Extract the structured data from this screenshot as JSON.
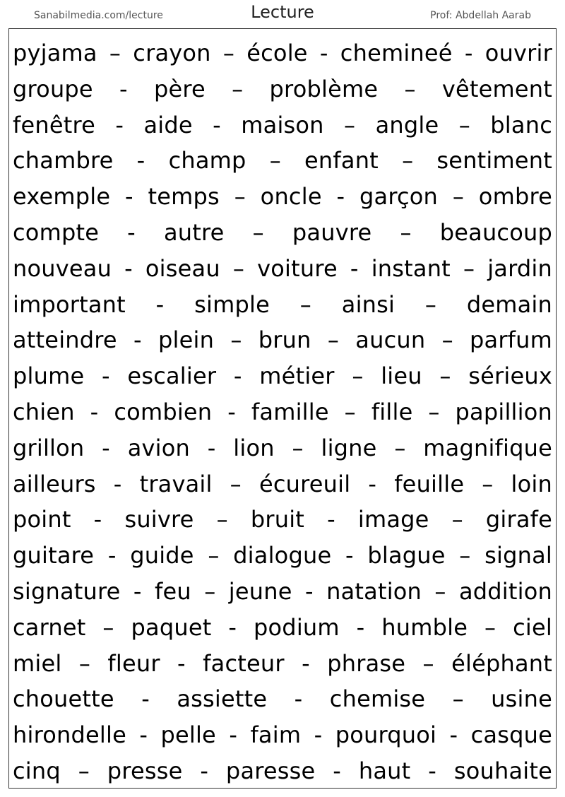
{
  "header": {
    "site": "Sanabilmedia.com/lecture",
    "title": "Lecture",
    "author": "Prof: Abdellah Aarab"
  },
  "lines": [
    "pyjama – crayon – école - chemineé - ouvrir",
    "groupe - père – problème – vêtement",
    "fenêtre - aide - maison – angle – blanc",
    "chambre - champ – enfant – sentiment",
    "exemple - temps – oncle - garçon – ombre",
    "compte - autre – pauvre – beaucoup",
    "nouveau - oiseau – voiture - instant – jardin",
    "important - simple – ainsi – demain",
    "atteindre - plein – brun – aucun – parfum",
    "plume - escalier - métier – lieu – sérieux",
    "chien - combien - famille – fille – papillion",
    "grillon - avion - lion – ligne – magnifique",
    "ailleurs - travail – écureuil - feuille – loin",
    "point - suivre – bruit - image – girafe",
    "guitare - guide – dialogue - blague – signal",
    "signature - feu – jeune - natation – addition",
    "carnet – paquet - podium - humble – ciel",
    "miel – fleur - facteur - phrase – éléphant",
    "chouette - assiette - chemise – usine",
    "hirondelle - pelle - faim - pourquoi - casque",
    "cinq – presse - paresse - haut - souhaite"
  ]
}
